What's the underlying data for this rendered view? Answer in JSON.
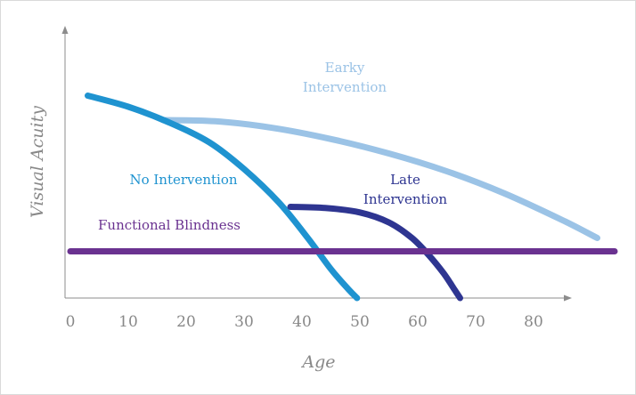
{
  "chart_data": {
    "type": "line",
    "title": "",
    "xlabel": "Age",
    "ylabel": "Visual Acuity",
    "x_ticks": [
      "0",
      "10",
      "20",
      "30",
      "40",
      "50",
      "60",
      "70",
      "80"
    ],
    "xlim": [
      0,
      90
    ],
    "ylim": [
      0,
      100
    ],
    "grid": false,
    "series": [
      {
        "name": "No Intervention",
        "color": "#1f93d0",
        "x": [
          3,
          10,
          17,
          24,
          30,
          36,
          41,
          45,
          48,
          49.5
        ],
        "y": [
          91,
          86,
          79,
          70,
          58,
          43,
          27,
          13,
          4,
          0
        ]
      },
      {
        "name": "Earky Intervention",
        "label_lines": [
          "Earky",
          "Intervention"
        ],
        "color": "#9bc3e6",
        "x": [
          16,
          25,
          35,
          45,
          55,
          65,
          75,
          85,
          91
        ],
        "y": [
          80,
          79.5,
          76.5,
          71.5,
          65,
          57,
          47,
          35,
          27
        ]
      },
      {
        "name": "Late Intervention",
        "label_lines": [
          "Late",
          "Intervention"
        ],
        "color": "#2e3591",
        "x": [
          38,
          44,
          50,
          55,
          59,
          62,
          64.5,
          66.3,
          67.3
        ],
        "y": [
          41,
          40.5,
          38.5,
          34,
          27,
          19,
          11,
          4,
          0
        ]
      },
      {
        "name": "Functional Blindness",
        "color": "#6a3290",
        "x": [
          0,
          94
        ],
        "y": [
          21,
          21
        ]
      }
    ]
  }
}
